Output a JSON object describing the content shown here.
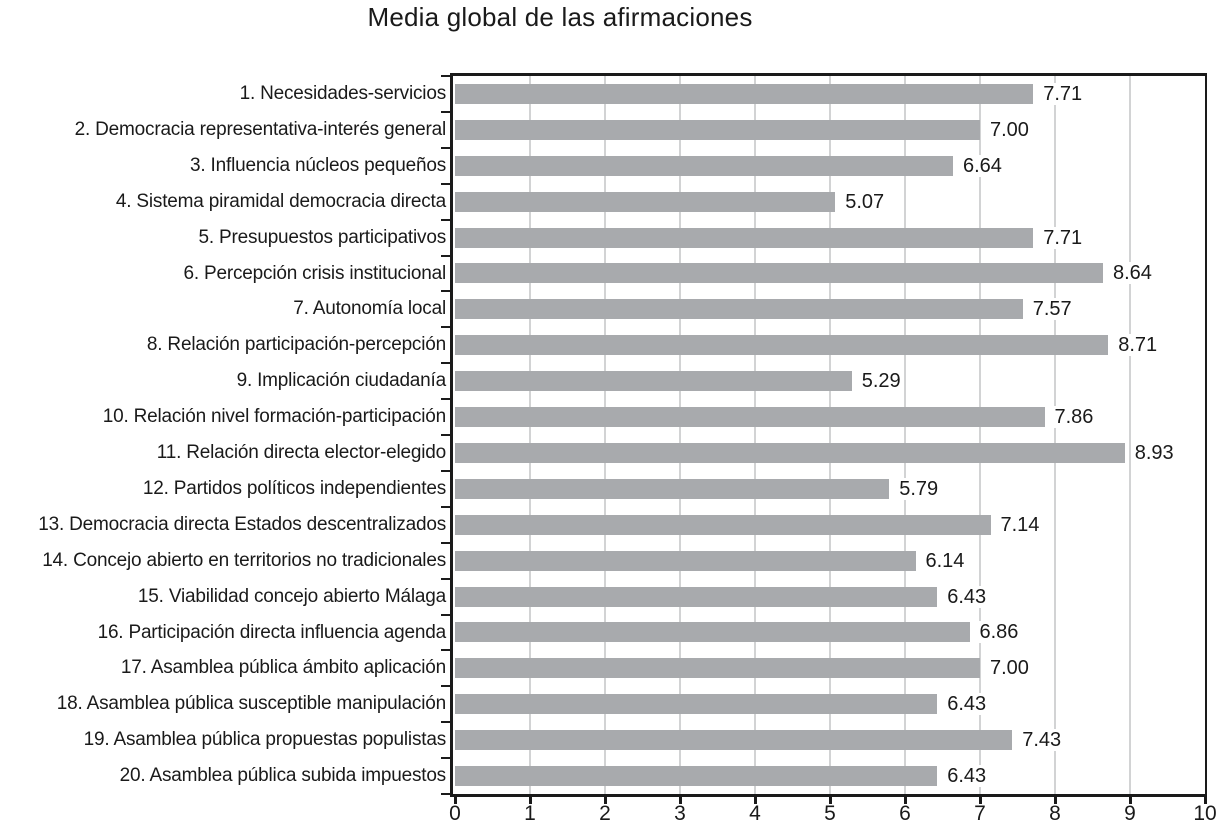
{
  "chart_data": {
    "type": "bar",
    "orientation": "horizontal",
    "title": "Media global de las afirmaciones",
    "categories": [
      "1. Necesidades-servicios",
      "2. Democracia representativa-interés general",
      "3. Influencia núcleos pequeños",
      "4. Sistema piramidal democracia directa",
      "5. Presupuestos participativos",
      "6. Percepción crisis institucional",
      "7. Autonomía local",
      "8. Relación participación-percepción",
      "9. Implicación ciudadanía",
      "10. Relación nivel formación-participación",
      "11. Relación directa elector-elegido",
      "12. Partidos políticos independientes",
      "13. Democracia directa Estados descentralizados",
      "14. Concejo abierto en territorios no tradicionales",
      "15. Viabilidad concejo abierto Málaga",
      "16. Participación directa influencia agenda",
      "17. Asamblea pública ámbito aplicación",
      "18. Asamblea pública susceptible manipulación",
      "19. Asamblea pública propuestas populistas",
      "20. Asamblea pública subida impuestos"
    ],
    "values": [
      7.71,
      7.0,
      6.64,
      5.07,
      7.71,
      8.64,
      7.57,
      8.71,
      5.29,
      7.86,
      8.93,
      5.79,
      7.14,
      6.14,
      6.43,
      6.86,
      7.0,
      6.43,
      7.43,
      6.43
    ],
    "value_labels": [
      "7.71",
      "7.00",
      "6.64",
      "5.07",
      "7.71",
      "8.64",
      "7.57",
      "8.71",
      "5.29",
      "7.86",
      "8.93",
      "5.79",
      "7.14",
      "6.14",
      "6.43",
      "6.86",
      "7.00",
      "6.43",
      "7.43",
      "6.43"
    ],
    "xlabel": "",
    "ylabel": "",
    "xlim": [
      0,
      10
    ],
    "x_ticks": [
      "0",
      "1",
      "2",
      "3",
      "4",
      "5",
      "6",
      "7",
      "8",
      "9",
      "10"
    ],
    "grid": true,
    "legend": false,
    "colors": {
      "bar": "#a8aaad",
      "gridline": "#d2d3d4",
      "axis": "#1a1a1a",
      "text": "#1a1a1a"
    }
  }
}
